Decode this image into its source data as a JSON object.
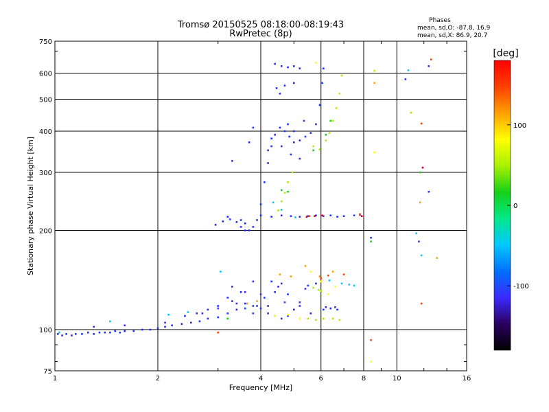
{
  "chart_data": {
    "type": "scatter",
    "title": "Tromsø 20150525 08:18:00-08:19:43",
    "subtitle": "RwPretec (8p)",
    "xlabel": "Frequency [MHz]",
    "ylabel": "Stationary phase Virtual Height [km]",
    "x_scale": "log",
    "y_scale": "log",
    "xlim": [
      1,
      16
    ],
    "ylim": [
      75,
      750
    ],
    "xticks": [
      1,
      2,
      4,
      6,
      8,
      10,
      16
    ],
    "xtick_labels": [
      "1",
      "2",
      "4",
      "6",
      "8",
      "10",
      "16"
    ],
    "yticks": [
      75,
      100,
      200,
      300,
      400,
      500,
      600,
      750
    ],
    "ytick_labels": [
      "75",
      "100",
      "200",
      "300",
      "400",
      "500",
      "600",
      "750"
    ],
    "grid": true,
    "phase_stats": {
      "title": "Phases",
      "line_o": "mean, sd,O: -87.8, 16.9",
      "line_x": "mean, sd,X:  86.9, 20.7"
    },
    "colorbar": {
      "label": "[deg]",
      "min": -180,
      "max": 180,
      "ticks": [
        100,
        0,
        -100
      ],
      "tick_labels": [
        "100",
        "0",
        "-100"
      ],
      "colormap": [
        "#000000",
        "#2a0060",
        "#3a2aff",
        "#0070ff",
        "#00c8ff",
        "#00e88a",
        "#18d018",
        "#a8f000",
        "#ffff00",
        "#ffa000",
        "#ff4000",
        "#ff0000"
      ]
    },
    "series": [
      {
        "color": "#1f2fff",
        "points": [
          [
            1.02,
            97
          ],
          [
            1.05,
            96
          ],
          [
            1.08,
            97
          ],
          [
            1.12,
            96
          ],
          [
            1.15,
            97
          ],
          [
            1.2,
            97
          ],
          [
            1.25,
            98
          ],
          [
            1.3,
            97
          ],
          [
            1.35,
            98
          ],
          [
            1.4,
            98
          ],
          [
            1.45,
            98
          ],
          [
            1.5,
            99
          ],
          [
            1.55,
            98
          ],
          [
            1.6,
            99
          ],
          [
            1.7,
            99
          ],
          [
            1.8,
            100
          ],
          [
            1.9,
            100
          ],
          [
            2.0,
            101
          ],
          [
            2.1,
            102
          ],
          [
            2.2,
            103
          ],
          [
            2.35,
            104
          ],
          [
            2.5,
            105
          ],
          [
            2.65,
            106
          ],
          [
            2.8,
            108
          ],
          [
            3.0,
            109
          ],
          [
            3.2,
            112
          ],
          [
            3.4,
            115
          ],
          [
            3.6,
            120
          ],
          [
            3.8,
            118
          ],
          [
            4.0,
            116
          ],
          [
            4.2,
            112
          ],
          [
            4.4,
            110
          ],
          [
            4.6,
            108
          ],
          [
            4.8,
            110
          ],
          [
            5.0,
            115
          ],
          [
            2.4,
            110
          ],
          [
            2.6,
            112
          ],
          [
            2.8,
            115
          ],
          [
            3.0,
            118
          ],
          [
            3.2,
            125
          ],
          [
            3.4,
            120
          ],
          [
            3.6,
            116
          ],
          [
            3.8,
            112
          ],
          [
            4.1,
            125
          ],
          [
            4.4,
            130
          ],
          [
            4.8,
            128
          ],
          [
            5.2,
            118
          ],
          [
            5.6,
            112
          ],
          [
            3.5,
            130
          ],
          [
            3.3,
            135
          ],
          [
            2.95,
            208
          ],
          [
            3.1,
            213
          ],
          [
            3.25,
            216
          ],
          [
            3.4,
            212
          ],
          [
            3.5,
            205
          ],
          [
            3.6,
            200
          ],
          [
            3.7,
            200
          ],
          [
            3.8,
            205
          ],
          [
            3.9,
            215
          ],
          [
            4.0,
            240
          ],
          [
            4.1,
            280
          ],
          [
            4.2,
            320
          ],
          [
            4.3,
            360
          ],
          [
            4.4,
            390
          ],
          [
            4.55,
            410
          ],
          [
            4.7,
            400
          ],
          [
            4.85,
            385
          ],
          [
            5.0,
            370
          ],
          [
            5.2,
            375
          ],
          [
            5.4,
            385
          ],
          [
            5.6,
            395
          ],
          [
            5.8,
            420
          ],
          [
            5.95,
            480
          ],
          [
            6.05,
            560
          ],
          [
            6.1,
            620
          ],
          [
            4.4,
            640
          ],
          [
            4.6,
            630
          ],
          [
            4.8,
            625
          ],
          [
            5.0,
            630
          ],
          [
            5.2,
            620
          ],
          [
            4.45,
            540
          ],
          [
            4.55,
            520
          ],
          [
            4.7,
            550
          ],
          [
            5.0,
            560
          ],
          [
            4.6,
            360
          ],
          [
            4.9,
            340
          ],
          [
            5.2,
            330
          ],
          [
            4.8,
            420
          ],
          [
            5.0,
            400
          ],
          [
            4.3,
            380
          ],
          [
            4.2,
            350
          ],
          [
            5.35,
            430
          ],
          [
            4.0,
            222
          ],
          [
            4.3,
            220
          ],
          [
            4.6,
            222
          ],
          [
            4.9,
            221
          ],
          [
            5.2,
            220
          ],
          [
            5.5,
            221
          ],
          [
            5.8,
            222
          ],
          [
            6.1,
            221
          ],
          [
            6.4,
            222
          ],
          [
            6.7,
            220
          ],
          [
            7.0,
            221
          ],
          [
            7.5,
            222
          ],
          [
            7.8,
            223
          ],
          [
            6.1,
            115
          ],
          [
            6.4,
            116
          ],
          [
            6.7,
            115
          ],
          [
            5.5,
            136
          ],
          [
            5.8,
            138
          ],
          [
            4.3,
            140
          ],
          [
            4.6,
            138
          ],
          [
            3.6,
            210
          ],
          [
            3.5,
            215
          ],
          [
            3.2,
            220
          ],
          [
            3.8,
            410
          ],
          [
            3.7,
            370
          ],
          [
            3.3,
            325
          ],
          [
            8.4,
            190
          ],
          [
            10.6,
            575
          ],
          [
            11.6,
            185
          ],
          [
            12.4,
            262
          ]
        ]
      },
      {
        "color": "#3a2aff",
        "points": [
          [
            1.3,
            102
          ],
          [
            1.6,
            103
          ],
          [
            2.1,
            105
          ],
          [
            2.7,
            112
          ],
          [
            3.0,
            116
          ],
          [
            3.3,
            122
          ],
          [
            3.6,
            130
          ],
          [
            3.9,
            118
          ],
          [
            4.2,
            118
          ],
          [
            4.7,
            121
          ],
          [
            5.2,
            121
          ],
          [
            5.4,
            133
          ],
          [
            3.8,
            140
          ],
          [
            4.0,
            128
          ],
          [
            4.5,
            135
          ],
          [
            6.2,
            117
          ],
          [
            6.6,
            117
          ],
          [
            12.4,
            630
          ]
        ]
      },
      {
        "color": "#00c8ff",
        "points": [
          [
            1.03,
            98
          ],
          [
            1.45,
            106
          ],
          [
            2.15,
            111
          ],
          [
            2.45,
            113
          ],
          [
            3.05,
            150
          ],
          [
            4.35,
            243
          ],
          [
            4.6,
            231
          ],
          [
            5.05,
            219
          ],
          [
            6.35,
            141
          ],
          [
            6.9,
            138
          ],
          [
            7.25,
            137
          ],
          [
            7.5,
            136
          ],
          [
            10.8,
            612
          ],
          [
            11.8,
            168
          ],
          [
            11.4,
            196
          ]
        ]
      },
      {
        "color": "#18d018",
        "points": [
          [
            3.2,
            108
          ],
          [
            4.6,
            265
          ],
          [
            4.8,
            262
          ],
          [
            5.7,
            350
          ],
          [
            6.2,
            390
          ],
          [
            6.4,
            430
          ],
          [
            8.4,
            185
          ],
          [
            11.7,
            300
          ]
        ]
      },
      {
        "color": "#a8f000",
        "points": [
          [
            4.5,
            230
          ],
          [
            4.6,
            245
          ],
          [
            4.7,
            260
          ],
          [
            4.8,
            280
          ],
          [
            4.95,
            300
          ],
          [
            5.7,
            360
          ],
          [
            5.95,
            352
          ],
          [
            6.2,
            375
          ],
          [
            6.35,
            395
          ],
          [
            6.5,
            430
          ],
          [
            6.65,
            470
          ],
          [
            6.8,
            520
          ],
          [
            6.9,
            590
          ],
          [
            5.5,
            108
          ],
          [
            5.8,
            107
          ],
          [
            6.1,
            108
          ],
          [
            6.5,
            108
          ],
          [
            6.8,
            107
          ],
          [
            5.7,
            134
          ],
          [
            5.9,
            132
          ],
          [
            6.0,
            131
          ],
          [
            8.6,
            610
          ],
          [
            11.0,
            455
          ]
        ]
      },
      {
        "color": "#ffff00",
        "points": [
          [
            4.4,
            110
          ],
          [
            4.8,
            111
          ],
          [
            5.2,
            108
          ],
          [
            5.6,
            150
          ],
          [
            6.0,
            140
          ],
          [
            6.3,
            128
          ],
          [
            6.6,
            135
          ],
          [
            5.8,
            645
          ],
          [
            8.4,
            80
          ],
          [
            8.6,
            345
          ]
        ]
      },
      {
        "color": "#ffa000",
        "points": [
          [
            3.65,
            120
          ],
          [
            3.9,
            122
          ],
          [
            4.55,
            147
          ],
          [
            4.9,
            145
          ],
          [
            5.4,
            156
          ],
          [
            5.95,
            145
          ],
          [
            6.5,
            150
          ],
          [
            8.6,
            560
          ],
          [
            11.7,
            243
          ],
          [
            13.1,
            165
          ]
        ]
      },
      {
        "color": "#ff4000",
        "points": [
          [
            3.0,
            98
          ],
          [
            5.55,
            221
          ],
          [
            6.0,
            143
          ],
          [
            6.3,
            146
          ],
          [
            7.0,
            147
          ],
          [
            7.8,
            224
          ],
          [
            8.4,
            93
          ],
          [
            12.6,
            660
          ],
          [
            11.8,
            422
          ],
          [
            11.8,
            120
          ]
        ]
      },
      {
        "color": "#d00018",
        "points": [
          [
            5.45,
            220
          ],
          [
            5.75,
            221
          ],
          [
            6.05,
            222
          ],
          [
            7.9,
            221
          ],
          [
            11.9,
            310
          ]
        ]
      }
    ]
  }
}
